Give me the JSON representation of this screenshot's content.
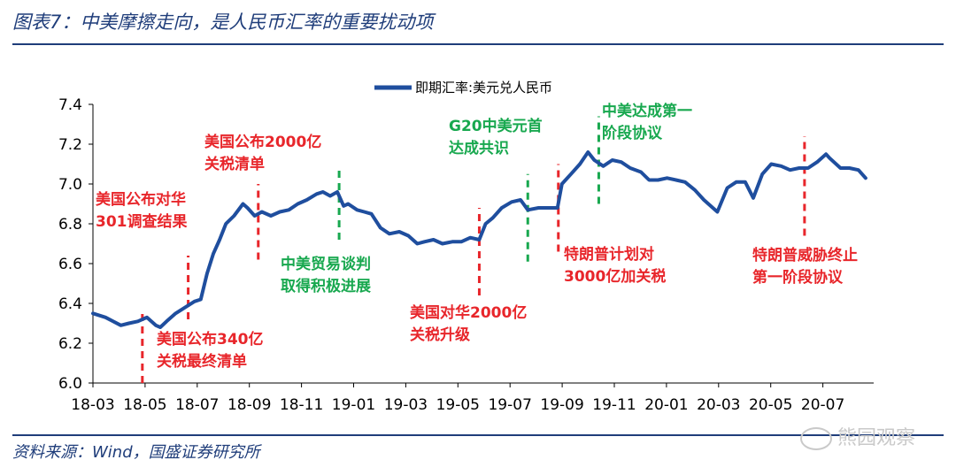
{
  "header": {
    "title": "图表7：中美摩擦走向，是人民币汇率的重要扰动项"
  },
  "footer": {
    "source": "资料来源：Wind，国盛证券研究所",
    "watermark": "熊园观察"
  },
  "colors": {
    "line": "#1f4e9e",
    "red": "#e8262b",
    "green": "#18a84f",
    "rule": "#1f3d7a"
  },
  "chart_data": {
    "type": "line",
    "legend": "即期汇率:美元兑人民币",
    "legend_position": "top-center",
    "grid": false,
    "ylim": [
      6.0,
      7.4
    ],
    "yticks": [
      "6.0",
      "6.2",
      "6.4",
      "6.6",
      "6.8",
      "7.0",
      "7.2",
      "7.4"
    ],
    "xticks": [
      "18-03",
      "18-05",
      "18-07",
      "18-09",
      "18-11",
      "19-01",
      "19-03",
      "19-05",
      "19-07",
      "19-09",
      "19-11",
      "20-01",
      "20-03",
      "20-05",
      "20-07"
    ],
    "x_start": "2018-03",
    "series": [
      {
        "name": "即期汇率:美元兑人民币",
        "points": [
          [
            "2018-03-01",
            6.35
          ],
          [
            "2018-03-15",
            6.33
          ],
          [
            "2018-04-01",
            6.29
          ],
          [
            "2018-04-10",
            6.3
          ],
          [
            "2018-04-20",
            6.31
          ],
          [
            "2018-04-30",
            6.33
          ],
          [
            "2018-05-10",
            6.29
          ],
          [
            "2018-05-15",
            6.28
          ],
          [
            "2018-05-22",
            6.31
          ],
          [
            "2018-06-01",
            6.35
          ],
          [
            "2018-06-08",
            6.37
          ],
          [
            "2018-06-15",
            6.39
          ],
          [
            "2018-06-22",
            6.41
          ],
          [
            "2018-06-29",
            6.42
          ],
          [
            "2018-07-06",
            6.55
          ],
          [
            "2018-07-13",
            6.65
          ],
          [
            "2018-07-20",
            6.72
          ],
          [
            "2018-07-27",
            6.8
          ],
          [
            "2018-08-05",
            6.84
          ],
          [
            "2018-08-15",
            6.9
          ],
          [
            "2018-08-20",
            6.88
          ],
          [
            "2018-08-28",
            6.84
          ],
          [
            "2018-09-05",
            6.86
          ],
          [
            "2018-09-15",
            6.84
          ],
          [
            "2018-09-25",
            6.86
          ],
          [
            "2018-10-05",
            6.87
          ],
          [
            "2018-10-15",
            6.9
          ],
          [
            "2018-10-25",
            6.92
          ],
          [
            "2018-11-05",
            6.95
          ],
          [
            "2018-11-12",
            6.96
          ],
          [
            "2018-11-20",
            6.94
          ],
          [
            "2018-11-28",
            6.96
          ],
          [
            "2018-12-05",
            6.89
          ],
          [
            "2018-12-10",
            6.9
          ],
          [
            "2018-12-20",
            6.87
          ],
          [
            "2018-12-28",
            6.86
          ],
          [
            "2019-01-05",
            6.85
          ],
          [
            "2019-01-15",
            6.78
          ],
          [
            "2019-01-25",
            6.75
          ],
          [
            "2019-02-05",
            6.76
          ],
          [
            "2019-02-15",
            6.74
          ],
          [
            "2019-02-25",
            6.7
          ],
          [
            "2019-03-05",
            6.71
          ],
          [
            "2019-03-15",
            6.72
          ],
          [
            "2019-03-25",
            6.7
          ],
          [
            "2019-04-05",
            6.71
          ],
          [
            "2019-04-15",
            6.71
          ],
          [
            "2019-04-25",
            6.73
          ],
          [
            "2019-05-05",
            6.72
          ],
          [
            "2019-05-12",
            6.8
          ],
          [
            "2019-05-20",
            6.83
          ],
          [
            "2019-05-30",
            6.88
          ],
          [
            "2019-06-10",
            6.91
          ],
          [
            "2019-06-20",
            6.92
          ],
          [
            "2019-06-28",
            6.87
          ],
          [
            "2019-07-10",
            6.88
          ],
          [
            "2019-07-20",
            6.88
          ],
          [
            "2019-07-31",
            6.88
          ],
          [
            "2019-08-05",
            7.0
          ],
          [
            "2019-08-15",
            7.05
          ],
          [
            "2019-08-25",
            7.1
          ],
          [
            "2019-09-03",
            7.16
          ],
          [
            "2019-09-10",
            7.12
          ],
          [
            "2019-09-20",
            7.09
          ],
          [
            "2019-09-30",
            7.12
          ],
          [
            "2019-10-10",
            7.11
          ],
          [
            "2019-10-20",
            7.08
          ],
          [
            "2019-11-01",
            7.06
          ],
          [
            "2019-11-10",
            7.02
          ],
          [
            "2019-11-20",
            7.02
          ],
          [
            "2019-11-30",
            7.03
          ],
          [
            "2019-12-10",
            7.02
          ],
          [
            "2019-12-20",
            7.01
          ],
          [
            "2019-12-31",
            6.97
          ],
          [
            "2020-01-10",
            6.92
          ],
          [
            "2020-01-20",
            6.88
          ],
          [
            "2020-01-25",
            6.86
          ],
          [
            "2020-02-05",
            6.98
          ],
          [
            "2020-02-15",
            7.01
          ],
          [
            "2020-02-25",
            7.01
          ],
          [
            "2020-03-05",
            6.93
          ],
          [
            "2020-03-15",
            7.05
          ],
          [
            "2020-03-25",
            7.1
          ],
          [
            "2020-04-05",
            7.09
          ],
          [
            "2020-04-15",
            7.07
          ],
          [
            "2020-04-25",
            7.08
          ],
          [
            "2020-05-05",
            7.08
          ],
          [
            "2020-05-15",
            7.11
          ],
          [
            "2020-05-25",
            7.15
          ],
          [
            "2020-05-29",
            7.13
          ],
          [
            "2020-06-10",
            7.08
          ],
          [
            "2020-06-20",
            7.08
          ],
          [
            "2020-06-30",
            7.07
          ],
          [
            "2020-07-08",
            7.03
          ]
        ]
      }
    ],
    "events": [
      {
        "date": "2018-04-25",
        "color": "red",
        "text": [
          "美国公布对华",
          "301调查结果"
        ],
        "y_from": 6.0,
        "y_to": 6.35
      },
      {
        "date": "2018-06-15",
        "color": "red",
        "text": [
          "美国公布340亿",
          "关税最终清单"
        ],
        "y_from": 6.32,
        "y_to": 6.64
      },
      {
        "date": "2018-09-01",
        "color": "red",
        "text": [
          "美国公布2000亿",
          "关税清单"
        ],
        "y_from": 6.62,
        "y_to": 7.0
      },
      {
        "date": "2018-11-30",
        "color": "green",
        "text": [
          "中美贸易谈判",
          "取得积极进展"
        ],
        "y_from": 6.72,
        "y_to": 7.08
      },
      {
        "date": "2019-05-05",
        "color": "red",
        "text": [
          "美国对华2000亿",
          "关税升级"
        ],
        "y_from": 6.44,
        "y_to": 6.88
      },
      {
        "date": "2019-06-28",
        "color": "green",
        "text": [
          "G20中美元首",
          "达成共识"
        ],
        "y_from": 6.61,
        "y_to": 7.05
      },
      {
        "date": "2019-08-01",
        "color": "red",
        "text": [
          "特朗普计划对",
          "3000亿加关税"
        ],
        "y_from": 6.66,
        "y_to": 7.1
      },
      {
        "date": "2019-09-15",
        "color": "green",
        "text": [
          "中美达成第一",
          "阶段协议"
        ],
        "y_from": 6.9,
        "y_to": 7.34
      },
      {
        "date": "2020-05-01",
        "color": "red",
        "text": [
          "特朗普威胁终止",
          "第一阶段协议"
        ],
        "y_from": 6.74,
        "y_to": 7.24
      }
    ]
  }
}
